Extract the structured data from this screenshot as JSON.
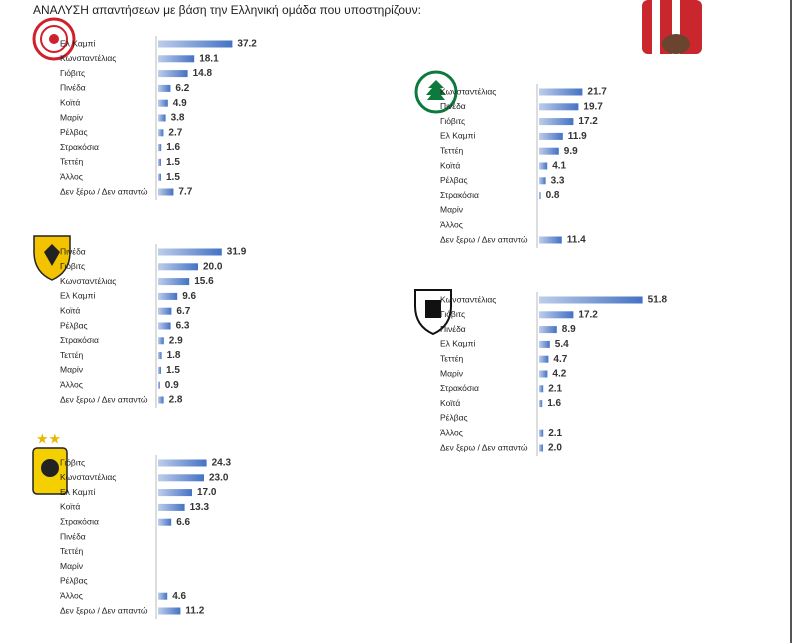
{
  "title": "ΑΝΑΛΥΣΗ απαντήσεων με βάση την Ελληνική ομάδα που υποστηρίζουν:",
  "chart_data": [
    {
      "type": "bar",
      "color": "#4472c4",
      "categories": [
        "Ελ Καμπί",
        "Κωνσταντέλιας",
        "Γιόβιτς",
        "Πινέδα",
        "Κοϊτά",
        "Μαρίν",
        "Ρέλβας",
        "Στρακόσια",
        "Τεττέη",
        "Άλλος",
        "Δεν ξέρω / Δεν απαντώ"
      ],
      "values": [
        37.2,
        18.1,
        14.8,
        6.2,
        4.9,
        3.8,
        2.7,
        1.6,
        1.5,
        1.5,
        7.7
      ]
    },
    {
      "type": "bar",
      "color": "#4472c4",
      "categories": [
        "Κωνσταντέλιας",
        "Πινέδα",
        "Γιόβιτς",
        "Ελ Καμπί",
        "Τεττέη",
        "Κοϊτά",
        "Ρέλβας",
        "Στρακόσια",
        "Μαρίν",
        "Άλλος",
        "Δεν ξερω / Δεν απαντώ"
      ],
      "values": [
        21.7,
        19.7,
        17.2,
        11.9,
        9.9,
        4.1,
        3.3,
        0.8,
        null,
        null,
        11.4
      ]
    },
    {
      "type": "bar",
      "color": "#4472c4",
      "categories": [
        "Πινέδα",
        "Γιόβιτς",
        "Κωνσταντέλιας",
        "Ελ Καμπί",
        "Κοϊτά",
        "Ρέλβας",
        "Στρακόσια",
        "Τεττέη",
        "Μαρίν",
        "Άλλος",
        "Δεν ξερω / Δεν απαντώ"
      ],
      "values": [
        31.9,
        20.0,
        15.6,
        9.6,
        6.7,
        6.3,
        2.9,
        1.8,
        1.5,
        0.9,
        2.8
      ],
      "value_labels": [
        "31.9",
        "20.0",
        "15.6",
        "9.6",
        "6.7",
        "6.3",
        "2.9",
        "1.8",
        "1.5",
        "0.9",
        "2.8"
      ]
    },
    {
      "type": "bar",
      "color": "#4472c4",
      "categories": [
        "Κωνσταντέλιας",
        "Γιόβιτς",
        "Πινέδα",
        "Ελ Καμπί",
        "Τεττέη",
        "Μαρίν",
        "Στρακόσια",
        "Κοϊτά",
        "Ρέλβας",
        "Άλλος",
        "Δεν ξερω / Δεν απαντώ"
      ],
      "values": [
        51.8,
        17.2,
        8.9,
        5.4,
        4.7,
        4.2,
        2.1,
        1.6,
        null,
        2.1,
        2.0
      ],
      "value_labels": [
        "51.8",
        "17.2",
        "8.9",
        "5.4",
        "4.7",
        "4.2",
        "2.1",
        "1.6",
        null,
        "2.1",
        "2.0"
      ]
    },
    {
      "type": "bar",
      "color": "#4472c4",
      "categories": [
        "Γιόβιτς",
        "Κωνσταντέλιας",
        "Ελ Καμπί",
        "Κοϊτά",
        "Στρακόσια",
        "Πινέδα",
        "Τεττέη",
        "Μαρίν",
        "Ρέλβας",
        "Άλλος",
        "Δεν ξερω / Δεν απαντώ"
      ],
      "values": [
        24.3,
        23.0,
        17.0,
        13.3,
        6.6,
        null,
        null,
        null,
        null,
        4.6,
        11.2
      ],
      "value_labels": [
        "24.3",
        "23.0",
        "17.0",
        "13.3",
        "6.6",
        null,
        null,
        null,
        null,
        "4.6",
        "11.2"
      ]
    }
  ]
}
